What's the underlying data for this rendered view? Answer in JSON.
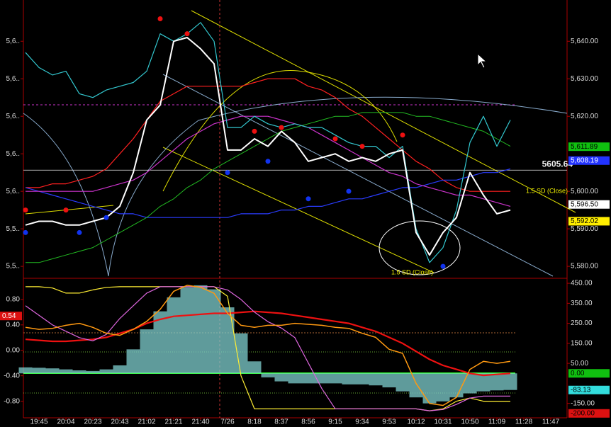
{
  "chart_data": [
    {
      "type": "line",
      "ylim": [
        5577,
        5651
      ],
      "yticks": [
        {
          "value": 5640,
          "label": "5,640.00"
        },
        {
          "value": 5630,
          "label": "5,630.00"
        },
        {
          "value": 5620,
          "label": "5,620.00"
        },
        {
          "value": 5600,
          "label": "5,600.00"
        },
        {
          "value": 5590,
          "label": "5,590.00"
        },
        {
          "value": 5580,
          "label": "5,580.00"
        }
      ],
      "yticks_left": [
        {
          "value": 5640,
          "label": "5,6.."
        },
        {
          "value": 5630,
          "label": "5,6.."
        },
        {
          "value": 5620,
          "label": "5,6.."
        },
        {
          "value": 5610,
          "label": "5,6.."
        },
        {
          "value": 5600,
          "label": "5,6.."
        },
        {
          "value": 5590,
          "label": "5,5.."
        },
        {
          "value": 5580,
          "label": "5,5.."
        }
      ],
      "reference_line": 5605.64,
      "annotations": [
        "1.5 SD (Close)",
        "1.5 SD (Close)"
      ],
      "series": [
        {
          "style": "line",
          "color": "#ff2020",
          "width": 1.2,
          "values": [
            5601,
            5601,
            5602,
            5602,
            5603,
            5604,
            5606,
            5610,
            5614,
            5619,
            5624,
            5626,
            5628,
            5628,
            5628,
            5628,
            5628,
            5629,
            5630,
            5630,
            5630,
            5628,
            5627,
            5625,
            5622,
            5620,
            5617,
            5614,
            5611,
            5608,
            5606,
            5603,
            5601,
            5600,
            5600,
            5600,
            5600,
            null,
            null,
            null
          ]
        },
        {
          "style": "line",
          "color": "#2a3cff",
          "width": 1.2,
          "values": [
            5601,
            5600,
            5599,
            5598,
            5597,
            5596,
            5595,
            5594,
            5594,
            5593,
            5593,
            5593,
            5593,
            5593,
            5593,
            5593,
            5594,
            5594,
            5594,
            5595,
            5595,
            5596,
            5596,
            5597,
            5598,
            5598,
            5599,
            5600,
            5601,
            5601,
            5602,
            5603,
            5603,
            5604,
            5605,
            5605,
            5606,
            null,
            null,
            null
          ]
        },
        {
          "style": "line",
          "color": "#22bb22",
          "width": 1,
          "values": [
            5581,
            5581,
            5582,
            5583,
            5584,
            5585,
            5587,
            5589,
            5591,
            5593,
            5596,
            5598,
            5601,
            5603,
            5606,
            5608,
            5610,
            5612,
            5614,
            5616,
            5617,
            5618,
            5619,
            5620,
            5620,
            5621,
            5621,
            5621,
            5621,
            5620,
            5620,
            5619,
            5618,
            5617,
            5616,
            5614,
            5612,
            null,
            null,
            null
          ]
        },
        {
          "style": "line",
          "color": "#cc33cc",
          "width": 1.2,
          "values": [
            5600,
            5600,
            5600,
            5600,
            5600,
            5600,
            5601,
            5602,
            5603,
            5605,
            5608,
            5611,
            5614,
            5616,
            5618,
            5619,
            5620,
            5620,
            5620,
            5619,
            5618,
            5617,
            5615,
            5613,
            5611,
            5609,
            5607,
            5605,
            5604,
            5602,
            5601,
            5600,
            5599,
            5599,
            5598,
            5597,
            5596,
            null,
            null,
            null
          ]
        },
        {
          "style": "line",
          "color": "#33c8d0",
          "width": 1.2,
          "values": [
            5637,
            5633,
            5631,
            5632,
            5626,
            5625,
            5627,
            5628,
            5629,
            5632,
            5642,
            5640,
            5642,
            5645,
            5640,
            5617,
            5617,
            5620,
            5618,
            5617,
            5618,
            5617,
            5617,
            5615,
            5613,
            5612,
            5612,
            5609,
            5612,
            5590,
            5581,
            5585,
            5595,
            5613,
            5620,
            5612,
            5619,
            null,
            null,
            null
          ]
        },
        {
          "style": "line",
          "color": "#ffffff",
          "width": 2,
          "values": [
            5591,
            5592,
            5592,
            5591,
            5591,
            5592,
            5593,
            5596,
            5605,
            5619,
            5623,
            5640,
            5641,
            5638,
            5634,
            5611,
            5611,
            5614,
            5612,
            5616,
            5613,
            5608,
            5609,
            5610,
            5608,
            5609,
            5608,
            5610,
            5611,
            5589,
            5583,
            5589,
            5593,
            5605,
            5599,
            5594,
            5595,
            null,
            null,
            null
          ]
        },
        {
          "style": "dots",
          "color": "#ee1111",
          "values": [
            5595,
            null,
            null,
            5595,
            null,
            null,
            null,
            null,
            null,
            null,
            5646,
            null,
            5642,
            null,
            null,
            null,
            null,
            5616,
            null,
            5617,
            null,
            null,
            null,
            5614,
            null,
            5612,
            null,
            null,
            5615,
            null,
            null,
            null,
            null,
            null,
            null,
            null,
            null,
            null,
            null,
            null
          ]
        },
        {
          "style": "dots",
          "color": "#1133ee",
          "values": [
            5589,
            null,
            null,
            null,
            5589,
            null,
            5593,
            null,
            null,
            null,
            null,
            null,
            null,
            null,
            null,
            5605,
            null,
            null,
            5608,
            null,
            null,
            5598,
            null,
            null,
            5600,
            null,
            null,
            null,
            null,
            null,
            null,
            5580,
            null,
            null,
            null,
            null,
            null,
            null,
            null,
            null
          ]
        }
      ],
      "last_values": [
        {
          "value": 5611.89,
          "label": "5,611.89",
          "color": "#10c010",
          "text_color": "#000"
        },
        {
          "value": 5608.19,
          "label": "5,608.19",
          "color": "#2233ff",
          "text_color": "#fff"
        },
        {
          "value": 5596.5,
          "label": "5,596.50",
          "color": "#ffffff",
          "text_color": "#000"
        },
        {
          "value": 5592.02,
          "label": "5,592.02",
          "color": "#ffee00",
          "text_color": "#000"
        }
      ]
    },
    {
      "type": "line",
      "categories": [
        null,
        "19:45",
        null,
        "20:04",
        null,
        "20:23",
        null,
        "20:43",
        null,
        "21:02",
        null,
        "21:21",
        null,
        "21:40",
        null,
        "7/26",
        null,
        "8:18",
        null,
        "8:37",
        null,
        "8:56",
        null,
        "9:15",
        null,
        "9:34",
        null,
        "9:53",
        null,
        "10:12",
        null,
        "10:31",
        null,
        "10:50",
        null,
        "11:09",
        null,
        "11:28",
        null,
        "11:47"
      ],
      "ylim": [
        -1.06,
        1.11
      ],
      "yticks": [
        {
          "value": 0.8,
          "label": "0.80"
        },
        {
          "value": 0.4,
          "label": "0.40"
        },
        {
          "value": 0,
          "label": "0.00"
        },
        {
          "value": -0.4,
          "label": "-0.40"
        },
        {
          "value": -0.8,
          "label": "-0.80"
        }
      ],
      "y2lim": [
        -222,
        468
      ],
      "y2ticks": [
        {
          "value": 450,
          "label": "450.00"
        },
        {
          "value": 350,
          "label": "350.00"
        },
        {
          "value": 250,
          "label": "250.00"
        },
        {
          "value": 150,
          "label": "150.00"
        },
        {
          "value": 50,
          "label": "50.00"
        },
        {
          "value": -150,
          "label": "-150.00"
        }
      ],
      "series": [
        {
          "style": "bars",
          "axis": "y2",
          "color": "#7fcfcf",
          "values": [
            30,
            28,
            25,
            20,
            15,
            12,
            20,
            40,
            120,
            220,
            310,
            380,
            430,
            440,
            420,
            330,
            200,
            60,
            -20,
            -40,
            -50,
            -50,
            -50,
            -50,
            -55,
            -55,
            -60,
            -70,
            -90,
            -120,
            -150,
            -140,
            -120,
            -100,
            -90,
            -85,
            -83,
            null,
            null,
            null
          ]
        },
        {
          "style": "line",
          "axis": "y2",
          "color": "#ee1111",
          "width": 2.2,
          "values": [
            170,
            165,
            160,
            160,
            165,
            170,
            180,
            200,
            220,
            250,
            270,
            285,
            290,
            295,
            300,
            300,
            305,
            310,
            305,
            300,
            290,
            280,
            270,
            260,
            250,
            230,
            210,
            180,
            150,
            110,
            70,
            40,
            20,
            0,
            -10,
            -5,
            0,
            null,
            null,
            null
          ]
        },
        {
          "style": "line",
          "axis": "y",
          "color": "#ffee33",
          "width": 1.2,
          "values": [
            1.0,
            1.0,
            0.98,
            0.9,
            0.9,
            0.95,
            0.99,
            1.0,
            1.0,
            1.0,
            1.0,
            1.0,
            1.0,
            1.0,
            1.0,
            0.85,
            -0.4,
            -0.92,
            -0.92,
            -0.92,
            -0.92,
            -0.92,
            -0.92,
            -0.92,
            -0.92,
            -0.92,
            -0.92,
            -0.92,
            -0.92,
            -0.92,
            -0.95,
            -0.92,
            -0.8,
            -0.75,
            -0.8,
            -0.8,
            -0.8,
            null,
            null,
            null
          ]
        },
        {
          "style": "line",
          "axis": "y",
          "color": "#dd66dd",
          "width": 1.2,
          "values": [
            0.7,
            0.55,
            0.4,
            0.3,
            0.2,
            0.15,
            0.25,
            0.5,
            0.7,
            0.9,
            1.0,
            1.0,
            1.0,
            1.0,
            1.0,
            0.95,
            0.8,
            0.6,
            0.45,
            0.35,
            0.2,
            -0.2,
            -0.6,
            -0.92,
            -0.92,
            -0.92,
            -0.92,
            -0.92,
            -0.92,
            -0.92,
            -0.95,
            -0.93,
            -0.85,
            -0.75,
            -0.72,
            -0.72,
            -0.72,
            null,
            null,
            null
          ]
        },
        {
          "style": "line",
          "axis": "y2",
          "color": "#ff9911",
          "width": 1.5,
          "values": [
            230,
            220,
            225,
            240,
            250,
            230,
            200,
            190,
            220,
            260,
            320,
            410,
            440,
            430,
            400,
            300,
            240,
            230,
            240,
            240,
            250,
            245,
            240,
            230,
            225,
            200,
            180,
            120,
            100,
            -50,
            -150,
            -160,
            -120,
            20,
            60,
            50,
            60,
            null,
            null,
            null
          ]
        }
      ],
      "last_values": [
        {
          "value": 0.54,
          "axis": "y",
          "color": "#dd1111",
          "text_color": "#fff"
        },
        {
          "value": 0,
          "label": "0.00",
          "axis": "y2",
          "color": "#10c010",
          "text_color": "#000"
        },
        {
          "value": -83.13,
          "axis": "y2",
          "color": "#33dddd",
          "text_color": "#000"
        },
        {
          "value": -200,
          "label": "-200.00",
          "axis": "y2",
          "color": "#dd1111",
          "text_color": "#000"
        }
      ]
    }
  ]
}
